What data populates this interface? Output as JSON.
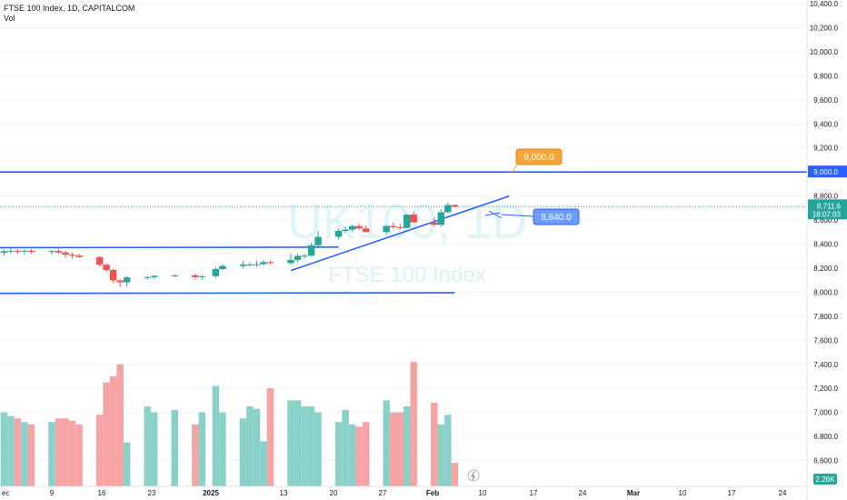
{
  "header": {
    "title": "FTSE 100 Index, 1D, CAPITALCOM",
    "volume_label": "Vol"
  },
  "watermark": {
    "symbol": "UK100, 1D",
    "name": "FTSE 100 Index"
  },
  "price_axis": {
    "ticks": [
      "10,400.0",
      "10,200.0",
      "10,000.0",
      "9,800.0",
      "9,600.0",
      "9,400.0",
      "9,200.0",
      "9,000.0",
      "8,800.0",
      "8,600.0",
      "8,400.0",
      "8,200.0",
      "8,000.0",
      "7,800.0",
      "7,600.0",
      "7,400.0",
      "7,200.0",
      "7,000.0",
      "6,800.0",
      "6,600.0"
    ],
    "last_price": "8,711.6",
    "countdown": "18:07:03",
    "level_tag": "9,000.0",
    "volume_tag": "2.26K"
  },
  "annotations": {
    "target_label": "9,000.0",
    "projection_label": "8,640.0"
  },
  "time_axis": {
    "ticks": [
      "ec",
      "9",
      "16",
      "23",
      "2025",
      "13",
      "20",
      "27",
      "Feb",
      "10",
      "17",
      "24",
      "Mar",
      "10",
      "17",
      "24"
    ],
    "bold_ticks": [
      "2025",
      "Feb",
      "Mar"
    ]
  },
  "colors": {
    "up": "#26a69a",
    "down": "#ef5350",
    "vol_up": "#8ad1c9",
    "vol_down": "#f5a3a3",
    "lines": "#2962ff",
    "accent_orange": "#f7a538"
  },
  "chart_data": {
    "type": "candlestick",
    "x": [
      "Dec 2",
      "Dec 3",
      "Dec 4",
      "Dec 5",
      "Dec 6",
      "Dec 9",
      "Dec 10",
      "Dec 11",
      "Dec 12",
      "Dec 13",
      "Dec 16",
      "Dec 17",
      "Dec 18",
      "Dec 19",
      "Dec 20",
      "Dec 23",
      "Dec 24",
      "Dec 27",
      "Dec 30",
      "Dec 31",
      "Jan 2",
      "Jan 3",
      "Jan 6",
      "Jan 7",
      "Jan 8",
      "Jan 9",
      "Jan 10",
      "Jan 13",
      "Jan 14",
      "Jan 15",
      "Jan 16",
      "Jan 17",
      "Jan 20",
      "Jan 21",
      "Jan 22",
      "Jan 23",
      "Jan 24",
      "Jan 27",
      "Jan 28",
      "Jan 29",
      "Jan 30",
      "Jan 31",
      "Feb 3",
      "Feb 4",
      "Feb 5",
      "Feb 6"
    ],
    "open": [
      8328,
      8340,
      8345,
      8340,
      8345,
      8335,
      8342,
      8330,
      8312,
      8305,
      8292,
      8228,
      8185,
      8098,
      8082,
      8123,
      8125,
      8136,
      8140,
      8125,
      8133,
      8192,
      8218,
      8230,
      8230,
      8233,
      8250,
      8242,
      8268,
      8302,
      8304,
      8390,
      8460,
      8510,
      8520,
      8550,
      8530,
      8500,
      8550,
      8540,
      8535,
      8645,
      8580,
      8560,
      8665,
      8725
    ],
    "high": [
      8355,
      8365,
      8360,
      8355,
      8360,
      8350,
      8360,
      8345,
      8330,
      8320,
      8300,
      8240,
      8195,
      8110,
      8135,
      8135,
      8140,
      8150,
      8155,
      8142,
      8210,
      8235,
      8260,
      8250,
      8260,
      8270,
      8265,
      8320,
      8320,
      8320,
      8410,
      8510,
      8530,
      8545,
      8560,
      8570,
      8555,
      8560,
      8580,
      8570,
      8650,
      8670,
      8625,
      8690,
      8745,
      8730
    ],
    "low": [
      8305,
      8320,
      8320,
      8315,
      8320,
      8310,
      8320,
      8285,
      8280,
      8285,
      8215,
      8170,
      8075,
      8045,
      8045,
      8105,
      8110,
      8125,
      8105,
      8100,
      8120,
      8180,
      8200,
      8215,
      8210,
      8220,
      8230,
      8230,
      8250,
      8280,
      8295,
      8380,
      8440,
      8495,
      8500,
      8520,
      8500,
      8475,
      8530,
      8520,
      8530,
      8580,
      8550,
      8545,
      8655,
      8705
    ],
    "close": [
      8340,
      8345,
      8340,
      8345,
      8335,
      8342,
      8330,
      8312,
      8305,
      8292,
      8228,
      8185,
      8098,
      8082,
      8123,
      8125,
      8136,
      8140,
      8125,
      8133,
      8192,
      8218,
      8230,
      8230,
      8233,
      8250,
      8242,
      8268,
      8302,
      8304,
      8390,
      8460,
      8510,
      8520,
      8550,
      8530,
      8500,
      8550,
      8540,
      8535,
      8645,
      8580,
      8560,
      8665,
      8725,
      8712
    ],
    "volume": [
      7.0,
      6.97,
      6.95,
      6.92,
      6.9,
      6.92,
      6.95,
      6.95,
      6.93,
      6.9,
      6.98,
      7.25,
      7.3,
      7.4,
      6.75,
      7.05,
      7.0,
      7.02,
      6.9,
      7.0,
      7.22,
      7.0,
      6.95,
      7.05,
      7.03,
      6.76,
      7.2,
      7.1,
      7.1,
      7.05,
      7.05,
      7.0,
      6.92,
      7.02,
      6.9,
      6.88,
      6.92,
      7.1,
      7.0,
      7.0,
      7.05,
      7.42,
      7.08,
      6.9,
      6.98,
      6.58
    ],
    "volume_unit": "display units",
    "ylim": [
      6500,
      10450
    ],
    "lines": [
      {
        "from": [
          "Nov 28",
          8370
        ],
        "to": [
          "Jan 20",
          8375
        ]
      },
      {
        "from": [
          "Nov 28",
          7990
        ],
        "to": [
          "Feb 6",
          7995
        ]
      },
      {
        "from": [
          "Jan 13",
          8180
        ],
        "to": [
          "Feb 14",
          8800
        ]
      },
      {
        "from": [
          "Nov 28",
          9000
        ],
        "to": [
          "Mar 31",
          9000
        ]
      }
    ]
  }
}
